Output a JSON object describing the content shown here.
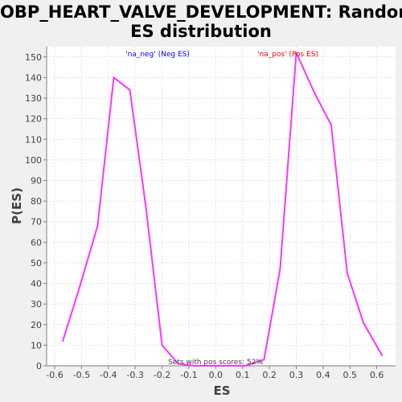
{
  "chart_data": {
    "type": "line",
    "title_line1": "GOBP_HEART_VALVE_DEVELOPMENT: Random",
    "title_line2": "ES distribution",
    "xlabel": "ES",
    "ylabel": "P(ES)",
    "xlim": [
      -0.63,
      0.67
    ],
    "ylim": [
      0,
      155
    ],
    "x_ticks": [
      "-0.6",
      "-0.5",
      "-0.4",
      "-0.3",
      "-0.2",
      "-0.1",
      "0.0",
      "0.1",
      "0.2",
      "0.3",
      "0.4",
      "0.5",
      "0.6"
    ],
    "x_tick_values": [
      -0.6,
      -0.5,
      -0.4,
      -0.3,
      -0.2,
      -0.1,
      0.0,
      0.1,
      0.2,
      0.3,
      0.4,
      0.5,
      0.6
    ],
    "y_ticks": [
      "0",
      "10",
      "20",
      "30",
      "40",
      "50",
      "60",
      "70",
      "80",
      "90",
      "100",
      "110",
      "120",
      "130",
      "140",
      "150"
    ],
    "y_tick_values": [
      0,
      10,
      20,
      30,
      40,
      50,
      60,
      70,
      80,
      90,
      100,
      110,
      120,
      130,
      140,
      150
    ],
    "grid": true,
    "line_color": "#ff33ff",
    "legend": [
      {
        "label": "'na_neg' (Neg ES)",
        "color": "#0000ff"
      },
      {
        "label": "'na_pos' (Pos ES)",
        "color": "#ff0000"
      }
    ],
    "annotation": "Sets with pos scores: 52%",
    "series": [
      {
        "x": [
          -0.57,
          -0.51,
          -0.44,
          -0.38,
          -0.32,
          -0.26,
          -0.2,
          -0.14,
          -0.08,
          -0.02,
          0.04,
          0.11,
          0.18,
          0.24,
          0.3,
          0.37,
          0.43,
          0.49,
          0.55,
          0.62
        ],
        "y": [
          12,
          37,
          68,
          140,
          134,
          77,
          10,
          1,
          0,
          0,
          0,
          0,
          3,
          47,
          152,
          132,
          117,
          45,
          21,
          5
        ]
      }
    ]
  }
}
